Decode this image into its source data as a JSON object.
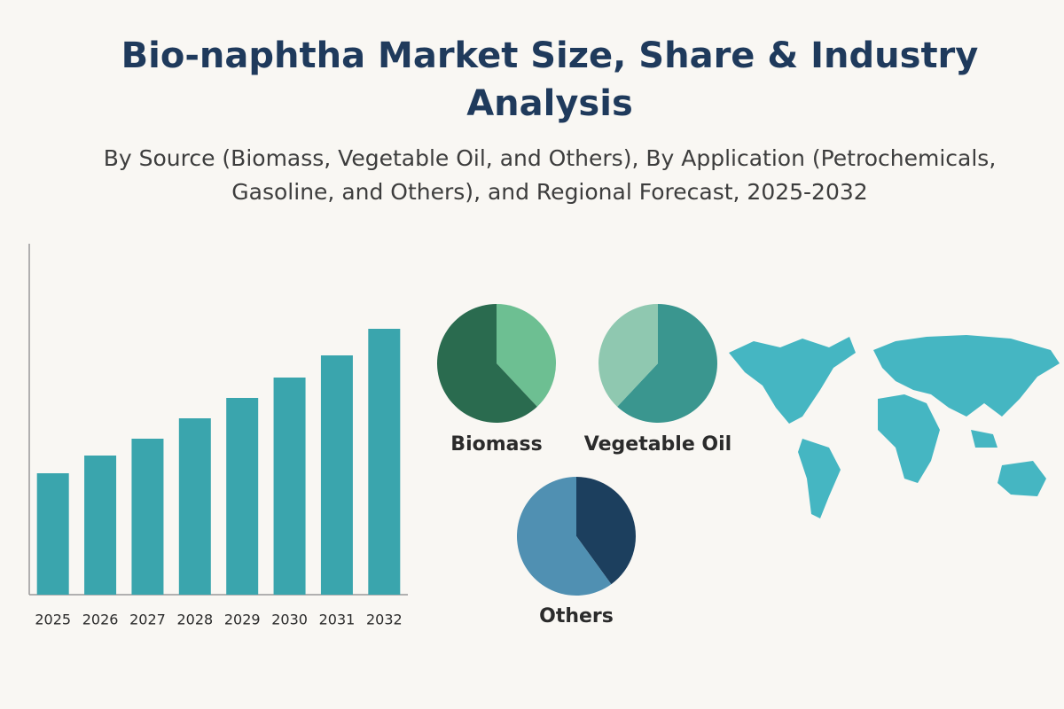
{
  "title": "Bio-naphtha Market Size, Share & Industry Analysis",
  "subtitle": "By Source (Biomass, Vegetable Oil, and Others), By Application (Petrochemicals, Gasoline, and Others), and Regional Forecast, 2025-2032",
  "chart_data": [
    {
      "type": "bar",
      "categories": [
        "2025",
        "2026",
        "2027",
        "2028",
        "2029",
        "2030",
        "2031",
        "2032"
      ],
      "values": [
        137,
        157,
        176,
        199,
        222,
        245,
        270,
        300
      ],
      "color": "#3aa5ad",
      "ylim": [
        0,
        396
      ]
    },
    {
      "type": "pie",
      "label": "Biomass",
      "values": [
        38,
        62
      ],
      "colors": [
        "#6dbf92",
        "#2a6b4f"
      ]
    },
    {
      "type": "pie",
      "label": "Vegetable Oil",
      "values": [
        62,
        38
      ],
      "colors": [
        "#3a968f",
        "#8fc8b0"
      ]
    },
    {
      "type": "pie",
      "label": "Others",
      "values": [
        40,
        60
      ],
      "colors": [
        "#1c3f5e",
        "#5090b2"
      ]
    }
  ]
}
